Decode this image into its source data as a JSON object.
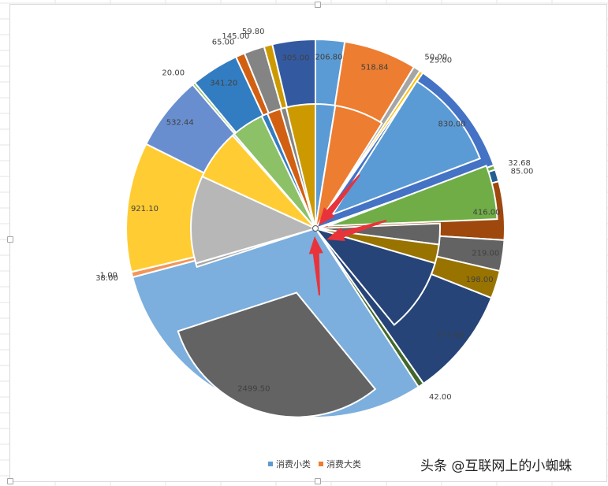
{
  "chart_data": {
    "type": "pie",
    "title": "",
    "series": [
      {
        "name": "消费大类",
        "values": [
          206.8,
          518.84,
          830.0,
          416.0,
          219.0,
          198.0,
          777.0,
          2499.5,
          38.0,
          1.0,
          921.1,
          532.44,
          20.0,
          341.2,
          65.0,
          145.0,
          59.8,
          305.0
        ],
        "labels": [
          "206.80",
          "518.84",
          "830.00",
          "416.00",
          "219.00",
          "198.00",
          "777.00",
          "2499.50",
          "38.00",
          "1.00",
          "921.10",
          "532.44",
          "20.00",
          "341.20",
          "65.00",
          "145.00",
          "59.80",
          "305.00"
        ]
      },
      {
        "name": "消费小类",
        "values": [
          206.8,
          518.84,
          50.0,
          25.0,
          830.0,
          32.68,
          85.0,
          416.0,
          219.0,
          198.0,
          777.0,
          42.0,
          2499.5,
          38.0,
          1.0,
          921.1,
          532.44,
          20.0,
          341.2,
          65.0,
          145.0,
          59.8,
          305.0
        ],
        "labels": [
          "206.80",
          "518.84",
          "50.00",
          "25.00",
          "830.00",
          "32.68",
          "85.00",
          "416.00",
          "219.00",
          "198.00",
          "777.00",
          "42.00",
          "2499.50",
          "38.00",
          "1.00",
          "921.10",
          "532.44",
          "20.00",
          "341.20",
          "65.00",
          "145.00",
          "59.80",
          "305.00"
        ]
      }
    ],
    "outer_colors": [
      "#5b9bd5",
      "#ed7d31",
      "#a5a5a5",
      "#ffc000",
      "#4472c4",
      "#70ad47",
      "#255e91",
      "#9e480e",
      "#636363",
      "#997300",
      "#264478",
      "#43682b",
      "#7cafdd",
      "#f1975a",
      "#b7b7b7",
      "#ffcd33",
      "#698ed0",
      "#8cc168",
      "#327dc2",
      "#d26012",
      "#848484",
      "#cc9a00",
      "#335aa1"
    ],
    "inner_colors": [
      "#5b9bd5",
      "#ed7d31",
      "#5b9bd5",
      "#70ad47",
      "#636363",
      "#997300",
      "#264478",
      "#636363",
      "#a5a5a5",
      "#ffc000",
      "#b7b7b7",
      "#ffcd33",
      "#698ed0",
      "#8cc168",
      "#327dc2",
      "#d26012",
      "#848484",
      "#cc9a00"
    ],
    "legend_position": "bottom"
  },
  "legend": {
    "items": [
      {
        "label": "消费小类",
        "color": "#5b9bd5"
      },
      {
        "label": "消费大类",
        "color": "#ed7d31"
      }
    ]
  },
  "watermark": "头条 @互联网上的小蜘蛛"
}
